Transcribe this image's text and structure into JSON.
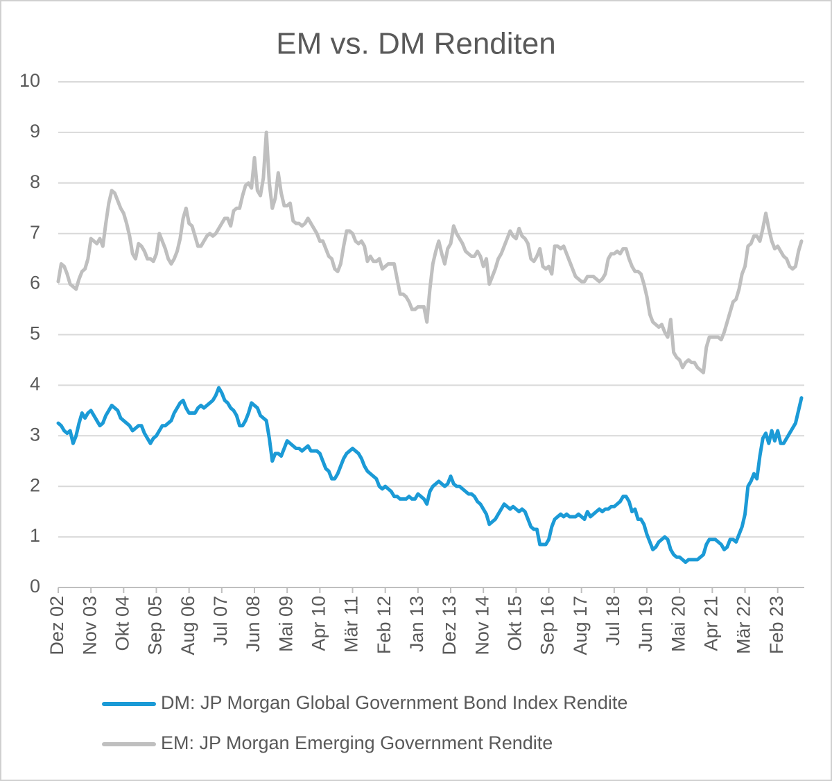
{
  "chart_data": {
    "type": "line",
    "title": "EM vs. DM Renditen",
    "categories": [
      "Dez 02",
      null,
      null,
      null,
      null,
      null,
      null,
      null,
      null,
      null,
      null,
      "Nov 03",
      null,
      null,
      null,
      null,
      null,
      null,
      null,
      null,
      null,
      null,
      "Okt 04",
      null,
      null,
      null,
      null,
      null,
      null,
      null,
      null,
      null,
      null,
      "Sep 05",
      null,
      null,
      null,
      null,
      null,
      null,
      null,
      null,
      null,
      null,
      "Aug 06",
      null,
      null,
      null,
      null,
      null,
      null,
      null,
      null,
      null,
      null,
      "Jul 07",
      null,
      null,
      null,
      null,
      null,
      null,
      null,
      null,
      null,
      null,
      "Jun 08",
      null,
      null,
      null,
      null,
      null,
      null,
      null,
      null,
      null,
      null,
      "Mai 09",
      null,
      null,
      null,
      null,
      null,
      null,
      null,
      null,
      null,
      null,
      "Apr 10",
      null,
      null,
      null,
      null,
      null,
      null,
      null,
      null,
      null,
      null,
      "Mär 11",
      null,
      null,
      null,
      null,
      null,
      null,
      null,
      null,
      null,
      null,
      "Feb 12",
      null,
      null,
      null,
      null,
      null,
      null,
      null,
      null,
      null,
      null,
      "Jan 13",
      null,
      null,
      null,
      null,
      null,
      null,
      null,
      null,
      null,
      null,
      "Dez 13",
      null,
      null,
      null,
      null,
      null,
      null,
      null,
      null,
      null,
      null,
      "Nov 14",
      null,
      null,
      null,
      null,
      null,
      null,
      null,
      null,
      null,
      null,
      "Okt 15",
      null,
      null,
      null,
      null,
      null,
      null,
      null,
      null,
      null,
      null,
      "Sep 16",
      null,
      null,
      null,
      null,
      null,
      null,
      null,
      null,
      null,
      null,
      "Aug 17",
      null,
      null,
      null,
      null,
      null,
      null,
      null,
      null,
      null,
      null,
      "Jul 18",
      null,
      null,
      null,
      null,
      null,
      null,
      null,
      null,
      null,
      null,
      "Jun 19",
      null,
      null,
      null,
      null,
      null,
      null,
      null,
      null,
      null,
      null,
      "Mai 20",
      null,
      null,
      null,
      null,
      null,
      null,
      null,
      null,
      null,
      null,
      "Apr 21",
      null,
      null,
      null,
      null,
      null,
      null,
      null,
      null,
      null,
      null,
      "Mär 22",
      null,
      null,
      null,
      null,
      null,
      null,
      null,
      null,
      null,
      null,
      "Feb 23",
      null,
      null,
      null,
      null,
      null,
      null,
      null,
      null
    ],
    "series": [
      {
        "name": "DM: JP Morgan Global Government Bond Index Rendite",
        "color": "#1b9ad6",
        "values": [
          3.25,
          3.2,
          3.1,
          3.05,
          3.1,
          2.85,
          3.0,
          3.25,
          3.45,
          3.35,
          3.45,
          3.5,
          3.4,
          3.3,
          3.2,
          3.25,
          3.4,
          3.5,
          3.6,
          3.55,
          3.5,
          3.35,
          3.3,
          3.25,
          3.2,
          3.1,
          3.15,
          3.2,
          3.2,
          3.05,
          2.95,
          2.85,
          2.95,
          3.0,
          3.1,
          3.2,
          3.2,
          3.25,
          3.3,
          3.45,
          3.55,
          3.65,
          3.7,
          3.55,
          3.45,
          3.45,
          3.45,
          3.55,
          3.6,
          3.55,
          3.6,
          3.65,
          3.7,
          3.8,
          3.95,
          3.85,
          3.7,
          3.65,
          3.55,
          3.5,
          3.4,
          3.2,
          3.2,
          3.3,
          3.45,
          3.65,
          3.6,
          3.55,
          3.4,
          3.35,
          3.3,
          2.95,
          2.5,
          2.65,
          2.65,
          2.6,
          2.75,
          2.9,
          2.85,
          2.8,
          2.75,
          2.75,
          2.7,
          2.75,
          2.8,
          2.7,
          2.7,
          2.7,
          2.65,
          2.5,
          2.35,
          2.3,
          2.15,
          2.15,
          2.25,
          2.4,
          2.55,
          2.65,
          2.7,
          2.75,
          2.7,
          2.65,
          2.55,
          2.4,
          2.3,
          2.25,
          2.2,
          2.15,
          2.0,
          1.95,
          2.0,
          1.95,
          1.9,
          1.8,
          1.8,
          1.75,
          1.75,
          1.75,
          1.8,
          1.75,
          1.75,
          1.85,
          1.8,
          1.75,
          1.65,
          1.9,
          2.0,
          2.05,
          2.1,
          2.05,
          2.0,
          2.05,
          2.2,
          2.05,
          2.0,
          2.0,
          1.95,
          1.9,
          1.85,
          1.85,
          1.8,
          1.7,
          1.65,
          1.55,
          1.45,
          1.25,
          1.3,
          1.35,
          1.45,
          1.55,
          1.65,
          1.6,
          1.55,
          1.6,
          1.55,
          1.5,
          1.55,
          1.5,
          1.35,
          1.2,
          1.15,
          1.15,
          0.85,
          0.85,
          0.85,
          0.95,
          1.2,
          1.35,
          1.4,
          1.45,
          1.4,
          1.45,
          1.4,
          1.4,
          1.4,
          1.45,
          1.4,
          1.35,
          1.5,
          1.4,
          1.45,
          1.5,
          1.55,
          1.5,
          1.55,
          1.55,
          1.6,
          1.6,
          1.65,
          1.7,
          1.8,
          1.8,
          1.7,
          1.5,
          1.55,
          1.35,
          1.35,
          1.25,
          1.05,
          0.9,
          0.75,
          0.8,
          0.9,
          0.95,
          1.0,
          0.95,
          0.75,
          0.65,
          0.6,
          0.6,
          0.55,
          0.5,
          0.55,
          0.55,
          0.55,
          0.55,
          0.6,
          0.65,
          0.85,
          0.95,
          0.95,
          0.95,
          0.9,
          0.85,
          0.75,
          0.8,
          0.95,
          0.95,
          0.9,
          1.05,
          1.2,
          1.45,
          2.0,
          2.1,
          2.25,
          2.15,
          2.6,
          2.95,
          3.05,
          2.85,
          3.1,
          2.9,
          3.1,
          2.85,
          2.85,
          2.95,
          3.05,
          3.15,
          3.25,
          3.5,
          3.75
        ]
      },
      {
        "name": "EM: JP Morgan Emerging Government Rendite",
        "color": "#bfbfbf",
        "values": [
          6.05,
          6.4,
          6.35,
          6.2,
          6.0,
          5.95,
          5.9,
          6.1,
          6.25,
          6.3,
          6.5,
          6.9,
          6.85,
          6.8,
          6.9,
          6.75,
          7.2,
          7.6,
          7.85,
          7.8,
          7.65,
          7.5,
          7.4,
          7.2,
          6.95,
          6.6,
          6.5,
          6.8,
          6.75,
          6.65,
          6.5,
          6.5,
          6.45,
          6.6,
          7.0,
          6.85,
          6.7,
          6.5,
          6.4,
          6.5,
          6.65,
          6.9,
          7.3,
          7.5,
          7.2,
          7.15,
          6.95,
          6.75,
          6.75,
          6.85,
          6.95,
          7.0,
          6.95,
          7.0,
          7.1,
          7.2,
          7.3,
          7.3,
          7.15,
          7.45,
          7.5,
          7.5,
          7.75,
          7.95,
          8.0,
          7.9,
          8.5,
          7.85,
          7.75,
          8.1,
          9.0,
          8.0,
          7.5,
          7.7,
          8.2,
          7.8,
          7.55,
          7.55,
          7.6,
          7.25,
          7.2,
          7.2,
          7.15,
          7.2,
          7.3,
          7.2,
          7.1,
          7.0,
          6.85,
          6.85,
          6.7,
          6.55,
          6.5,
          6.3,
          6.25,
          6.4,
          6.75,
          7.05,
          7.05,
          7.0,
          6.85,
          6.8,
          6.85,
          6.75,
          6.45,
          6.55,
          6.45,
          6.45,
          6.5,
          6.3,
          6.35,
          6.4,
          6.4,
          6.4,
          6.1,
          5.8,
          5.8,
          5.75,
          5.65,
          5.5,
          5.5,
          5.55,
          5.55,
          5.55,
          5.25,
          5.9,
          6.4,
          6.65,
          6.85,
          6.6,
          6.4,
          6.7,
          6.8,
          7.15,
          7.0,
          6.9,
          6.8,
          6.65,
          6.6,
          6.55,
          6.55,
          6.65,
          6.55,
          6.35,
          6.5,
          6.0,
          6.15,
          6.3,
          6.5,
          6.6,
          6.75,
          6.9,
          7.05,
          6.95,
          6.9,
          7.1,
          6.95,
          6.9,
          6.8,
          6.5,
          6.45,
          6.55,
          6.7,
          6.35,
          6.3,
          6.35,
          6.2,
          6.75,
          6.75,
          6.7,
          6.75,
          6.6,
          6.45,
          6.3,
          6.15,
          6.1,
          6.05,
          6.05,
          6.15,
          6.15,
          6.15,
          6.1,
          6.05,
          6.1,
          6.2,
          6.5,
          6.6,
          6.6,
          6.65,
          6.6,
          6.7,
          6.7,
          6.5,
          6.35,
          6.25,
          6.25,
          6.2,
          6.0,
          5.75,
          5.4,
          5.25,
          5.2,
          5.15,
          5.2,
          5.05,
          4.95,
          5.3,
          4.65,
          4.55,
          4.5,
          4.35,
          4.45,
          4.5,
          4.45,
          4.45,
          4.35,
          4.3,
          4.25,
          4.75,
          4.95,
          4.95,
          4.95,
          4.95,
          4.9,
          5.05,
          5.25,
          5.45,
          5.65,
          5.7,
          5.9,
          6.2,
          6.35,
          6.75,
          6.8,
          6.95,
          6.95,
          6.85,
          7.1,
          7.4,
          7.1,
          6.85,
          6.7,
          6.75,
          6.65,
          6.55,
          6.5,
          6.35,
          6.3,
          6.35,
          6.65,
          6.85
        ]
      }
    ],
    "ylim": [
      0,
      10
    ],
    "yticks": [
      0,
      1,
      2,
      3,
      4,
      5,
      6,
      7,
      8,
      9,
      10
    ],
    "grid": true
  }
}
